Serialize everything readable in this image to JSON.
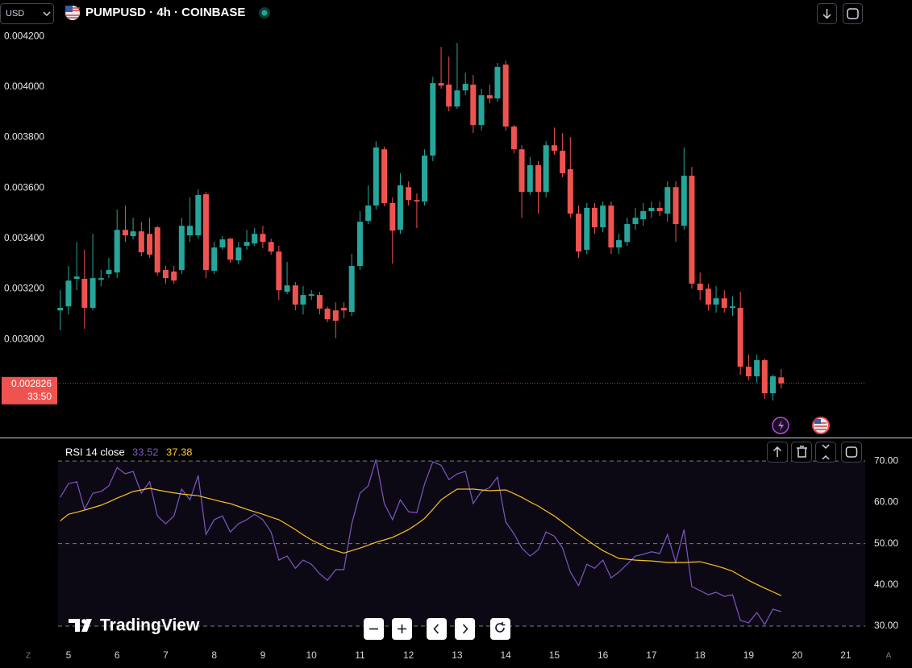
{
  "header": {
    "currency": "USD",
    "title": "PUMPUSD · 4h · COINBASE"
  },
  "watermark": "TradingView",
  "footer": {
    "left": "Z",
    "right": "A"
  },
  "chart_data": [
    {
      "type": "candlestick",
      "up_color": "#26a69a",
      "down_color": "#ef5350",
      "x": [
        4.83,
        5,
        5.17,
        5.33,
        5.5,
        5.67,
        5.83,
        6,
        6.17,
        6.33,
        6.5,
        6.67,
        6.83,
        7,
        7.17,
        7.33,
        7.5,
        7.67,
        7.83,
        8,
        8.17,
        8.33,
        8.5,
        8.67,
        8.83,
        9,
        9.17,
        9.33,
        9.5,
        9.67,
        9.83,
        10,
        10.17,
        10.33,
        10.5,
        10.67,
        10.83,
        11,
        11.17,
        11.33,
        11.5,
        11.67,
        11.83,
        12,
        12.17,
        12.33,
        12.5,
        12.67,
        12.83,
        13,
        13.17,
        13.33,
        13.5,
        13.67,
        13.83,
        14,
        14.17,
        14.33,
        14.5,
        14.67,
        14.83,
        15,
        15.17,
        15.33,
        15.5,
        15.67,
        15.83,
        16,
        16.17,
        16.33,
        16.5,
        16.67,
        16.83,
        17,
        17.17,
        17.33,
        17.5,
        17.67,
        17.83,
        18,
        18.17,
        18.33,
        18.5,
        18.67,
        18.83,
        19,
        19.17,
        19.33,
        19.5,
        19.67
      ],
      "open": [
        0.003115,
        0.003131,
        0.00324,
        0.00324,
        0.003125,
        0.003237,
        0.003259,
        0.003265,
        0.003434,
        0.003409,
        0.003428,
        0.003418,
        0.003444,
        0.003275,
        0.003269,
        0.003275,
        0.003412,
        0.003412,
        0.003575,
        0.003272,
        0.003364,
        0.003399,
        0.003313,
        0.003371,
        0.00338,
        0.003418,
        0.003386,
        0.003348,
        0.003189,
        0.003214,
        0.003138,
        0.003173,
        0.003176,
        0.003122,
        0.003115,
        0.003125,
        0.003109,
        0.003291,
        0.003469,
        0.00353,
        0.003753,
        0.00354,
        0.003434,
        0.003603,
        0.003552,
        0.003546,
        0.003728,
        0.004015,
        0.004009,
        0.003922,
        0.003986,
        0.004009,
        0.003849,
        0.003967,
        0.003954,
        0.004088,
        0.003843,
        0.003753,
        0.003584,
        0.00369,
        0.003584,
        0.003769,
        0.003747,
        0.003674,
        0.003498,
        0.003355,
        0.003521,
        0.003444,
        0.00353,
        0.003364,
        0.003386,
        0.003457,
        0.003476,
        0.003508,
        0.003521,
        0.003498,
        0.003603,
        0.00345,
        0.003648,
        0.003221,
        0.003201,
        0.003138,
        0.003163,
        0.003125,
        0.003125,
        0.002892,
        0.002854,
        0.002918,
        0.002787,
        0.00285
      ],
      "high": [
        0.003195,
        0.003291,
        0.003386,
        0.003355,
        0.003418,
        0.003275,
        0.003323,
        0.003514,
        0.00353,
        0.003482,
        0.003466,
        0.003482,
        0.00345,
        0.003291,
        0.003291,
        0.003482,
        0.003562,
        0.003594,
        0.003584,
        0.003386,
        0.003409,
        0.003402,
        0.003386,
        0.003434,
        0.003441,
        0.00345,
        0.003399,
        0.003371,
        0.003307,
        0.003227,
        0.003211,
        0.003195,
        0.003189,
        0.003131,
        0.003147,
        0.003147,
        0.003339,
        0.003508,
        0.00361,
        0.003785,
        0.003763,
        0.003562,
        0.003658,
        0.003626,
        0.003578,
        0.003753,
        0.00404,
        0.004158,
        0.00412,
        0.004174,
        0.004056,
        0.004047,
        0.003993,
        0.004009,
        0.004095,
        0.004104,
        0.003849,
        0.003769,
        0.003722,
        0.003706,
        0.003785,
        0.003839,
        0.003817,
        0.003801,
        0.00353,
        0.00354,
        0.00354,
        0.003546,
        0.003546,
        0.003418,
        0.003482,
        0.003521,
        0.00354,
        0.003546,
        0.003546,
        0.003626,
        0.003626,
        0.00376,
        0.003683,
        0.003265,
        0.003221,
        0.003211,
        0.003195,
        0.00317,
        0.003189,
        0.00294,
        0.00294,
        0.002924,
        0.00286,
        0.002883
      ],
      "low": [
        0.003036,
        0.003099,
        0.003195,
        0.003042,
        0.003115,
        0.003211,
        0.003243,
        0.003243,
        0.003386,
        0.003396,
        0.003329,
        0.003323,
        0.003253,
        0.003221,
        0.003221,
        0.003259,
        0.003386,
        0.003399,
        0.003243,
        0.003259,
        0.003355,
        0.003304,
        0.003297,
        0.003355,
        0.003371,
        0.003361,
        0.003336,
        0.003157,
        0.003179,
        0.003115,
        0.003099,
        0.003157,
        0.003099,
        0.003068,
        0.003005,
        0.003083,
        0.003093,
        0.003275,
        0.003457,
        0.003514,
        0.003527,
        0.0033,
        0.003418,
        0.00353,
        0.003441,
        0.00353,
        0.003706,
        0.003993,
        0.003903,
        0.003913,
        0.003967,
        0.003817,
        0.003827,
        0.003935,
        0.003942,
        0.003827,
        0.003737,
        0.003482,
        0.003572,
        0.003498,
        0.003562,
        0.003731,
        0.003642,
        0.003482,
        0.003323,
        0.003339,
        0.003418,
        0.003425,
        0.003339,
        0.003339,
        0.003371,
        0.003434,
        0.00345,
        0.003482,
        0.003489,
        0.003466,
        0.003386,
        0.003434,
        0.003201,
        0.003157,
        0.003115,
        0.003106,
        0.003106,
        0.003093,
        0.00286,
        0.002838,
        0.002828,
        0.002765,
        0.002758,
        0.002806
      ],
      "close": [
        0.003125,
        0.003233,
        0.003249,
        0.003125,
        0.003243,
        0.003243,
        0.003275,
        0.003434,
        0.003412,
        0.003428,
        0.003345,
        0.003336,
        0.003265,
        0.003243,
        0.003233,
        0.00345,
        0.00345,
        0.003572,
        0.003275,
        0.003364,
        0.003396,
        0.003316,
        0.003364,
        0.003386,
        0.003418,
        0.003386,
        0.003348,
        0.003195,
        0.003214,
        0.003138,
        0.003176,
        0.003179,
        0.003122,
        0.00308,
        0.003074,
        0.003115,
        0.003291,
        0.003466,
        0.00353,
        0.00376,
        0.00354,
        0.003431,
        0.00361,
        0.003552,
        0.003546,
        0.003728,
        0.004015,
        0.004005,
        0.003922,
        0.003986,
        0.004012,
        0.003849,
        0.003967,
        0.003954,
        0.004079,
        0.003843,
        0.003753,
        0.003584,
        0.00369,
        0.003584,
        0.003769,
        0.003747,
        0.003658,
        0.003498,
        0.003348,
        0.003521,
        0.003444,
        0.00353,
        0.003364,
        0.003393,
        0.003457,
        0.003482,
        0.003508,
        0.003521,
        0.003508,
        0.003603,
        0.003457,
        0.003648,
        0.003221,
        0.003195,
        0.003138,
        0.003163,
        0.003125,
        0.003131,
        0.002892,
        0.002854,
        0.002918,
        0.002787,
        0.002854,
        0.002826
      ],
      "xlim": [
        3.59,
        21.4
      ],
      "xticks": [
        5,
        6,
        7,
        8,
        9,
        10,
        11,
        12,
        13,
        14,
        15,
        16,
        17,
        18,
        19,
        20,
        21
      ],
      "ylim": [
        0.002618,
        0.004344
      ],
      "yticks": [
        {
          "value": 0.003,
          "label": "0.003000"
        },
        {
          "value": 0.0032,
          "label": "0.003200"
        },
        {
          "value": 0.0034,
          "label": "0.003400"
        },
        {
          "value": 0.0036,
          "label": "0.003600"
        },
        {
          "value": 0.0038,
          "label": "0.003800"
        },
        {
          "value": 0.004,
          "label": "0.004000"
        },
        {
          "value": 0.0042,
          "label": "0.004200"
        }
      ],
      "last_price": 0.002826,
      "countdown": "33:50"
    },
    {
      "type": "line",
      "title": "RSI 14 close",
      "xlim": [
        3.59,
        21.4
      ],
      "x": [
        4.83,
        5,
        5.17,
        5.33,
        5.5,
        5.67,
        5.83,
        6,
        6.17,
        6.33,
        6.5,
        6.67,
        6.83,
        7,
        7.17,
        7.33,
        7.5,
        7.67,
        7.83,
        8,
        8.17,
        8.33,
        8.5,
        8.67,
        8.83,
        9,
        9.17,
        9.33,
        9.5,
        9.67,
        9.83,
        10,
        10.17,
        10.33,
        10.5,
        10.67,
        10.83,
        11,
        11.17,
        11.33,
        11.5,
        11.67,
        11.83,
        12,
        12.17,
        12.33,
        12.5,
        12.67,
        12.83,
        13,
        13.17,
        13.33,
        13.5,
        13.67,
        13.83,
        14,
        14.17,
        14.33,
        14.5,
        14.67,
        14.83,
        15,
        15.17,
        15.33,
        15.5,
        15.67,
        15.83,
        16,
        16.17,
        16.33,
        16.5,
        16.67,
        16.83,
        17,
        17.17,
        17.33,
        17.5,
        17.67,
        17.83,
        18,
        18.17,
        18.33,
        18.5,
        18.67,
        18.83,
        19,
        19.17,
        19.33,
        19.5,
        19.67
      ],
      "series": [
        {
          "color": "#7e57c2",
          "values": [
            61.2,
            64.5,
            65,
            58.3,
            62.2,
            62.6,
            64,
            68.4,
            66.9,
            67.5,
            62.2,
            65,
            56.7,
            54.8,
            56.7,
            63.2,
            60.6,
            66.5,
            52.2,
            55.8,
            56.7,
            52.8,
            54.8,
            55.8,
            57.1,
            55.8,
            52.8,
            46,
            47,
            44,
            46,
            45,
            42.7,
            41.1,
            43.7,
            43.7,
            54.8,
            62.2,
            64,
            70.4,
            59.7,
            55.8,
            60.6,
            57.7,
            57.5,
            64.5,
            69.8,
            69,
            65.5,
            66.9,
            67.5,
            59.7,
            62.6,
            63.6,
            66.1,
            55.2,
            52.4,
            48.9,
            47,
            48.5,
            52.8,
            51.8,
            48.9,
            43.1,
            39.8,
            45,
            44,
            46,
            41.7,
            43.1,
            45,
            47,
            47.4,
            48,
            47.6,
            52.2,
            45.4,
            53.4,
            39.6,
            38.6,
            37.6,
            38.2,
            37.2,
            37.6,
            31.4,
            30.8,
            33.3,
            30.4,
            34.1,
            33.52
          ]
        },
        {
          "color": "#f7c325",
          "values": [
            55.5,
            57.1,
            57.6,
            58.1,
            58.7,
            59.3,
            60.1,
            61,
            61.8,
            62.6,
            63,
            63.4,
            63,
            62.6,
            62.3,
            62,
            61.8,
            61.6,
            61.1,
            60.6,
            60.1,
            59.7,
            59,
            58.3,
            57.7,
            57.1,
            56.4,
            55.8,
            54.6,
            53.4,
            52.1,
            50.9,
            49.9,
            48.9,
            48.3,
            47.7,
            48.3,
            48.9,
            49.6,
            50.3,
            50.9,
            51.5,
            52.4,
            53.4,
            54.7,
            56.1,
            58.3,
            60.6,
            61.9,
            63.2,
            63.2,
            63.2,
            63,
            62.8,
            62.9,
            63,
            62.1,
            61.2,
            60.1,
            59.1,
            57.9,
            56.7,
            55.2,
            53.8,
            52.3,
            50.9,
            49.6,
            48.3,
            47.3,
            46.4,
            46.2,
            46,
            45.9,
            45.8,
            45.6,
            45.4,
            45.4,
            45.4,
            45.5,
            45.6,
            45.1,
            44.6,
            44,
            43.3,
            42.2,
            41.1,
            40.1,
            39.2,
            38.3,
            37.38
          ]
        }
      ],
      "ylim": [
        26.1,
        75.3
      ],
      "yticks": [
        {
          "value": 30,
          "label": "30.00"
        },
        {
          "value": 40,
          "label": "40.00"
        },
        {
          "value": 50,
          "label": "50.00"
        },
        {
          "value": 60,
          "label": "60.00"
        },
        {
          "value": 70,
          "label": "70.00"
        }
      ],
      "levels": [
        30,
        50,
        70
      ]
    }
  ]
}
